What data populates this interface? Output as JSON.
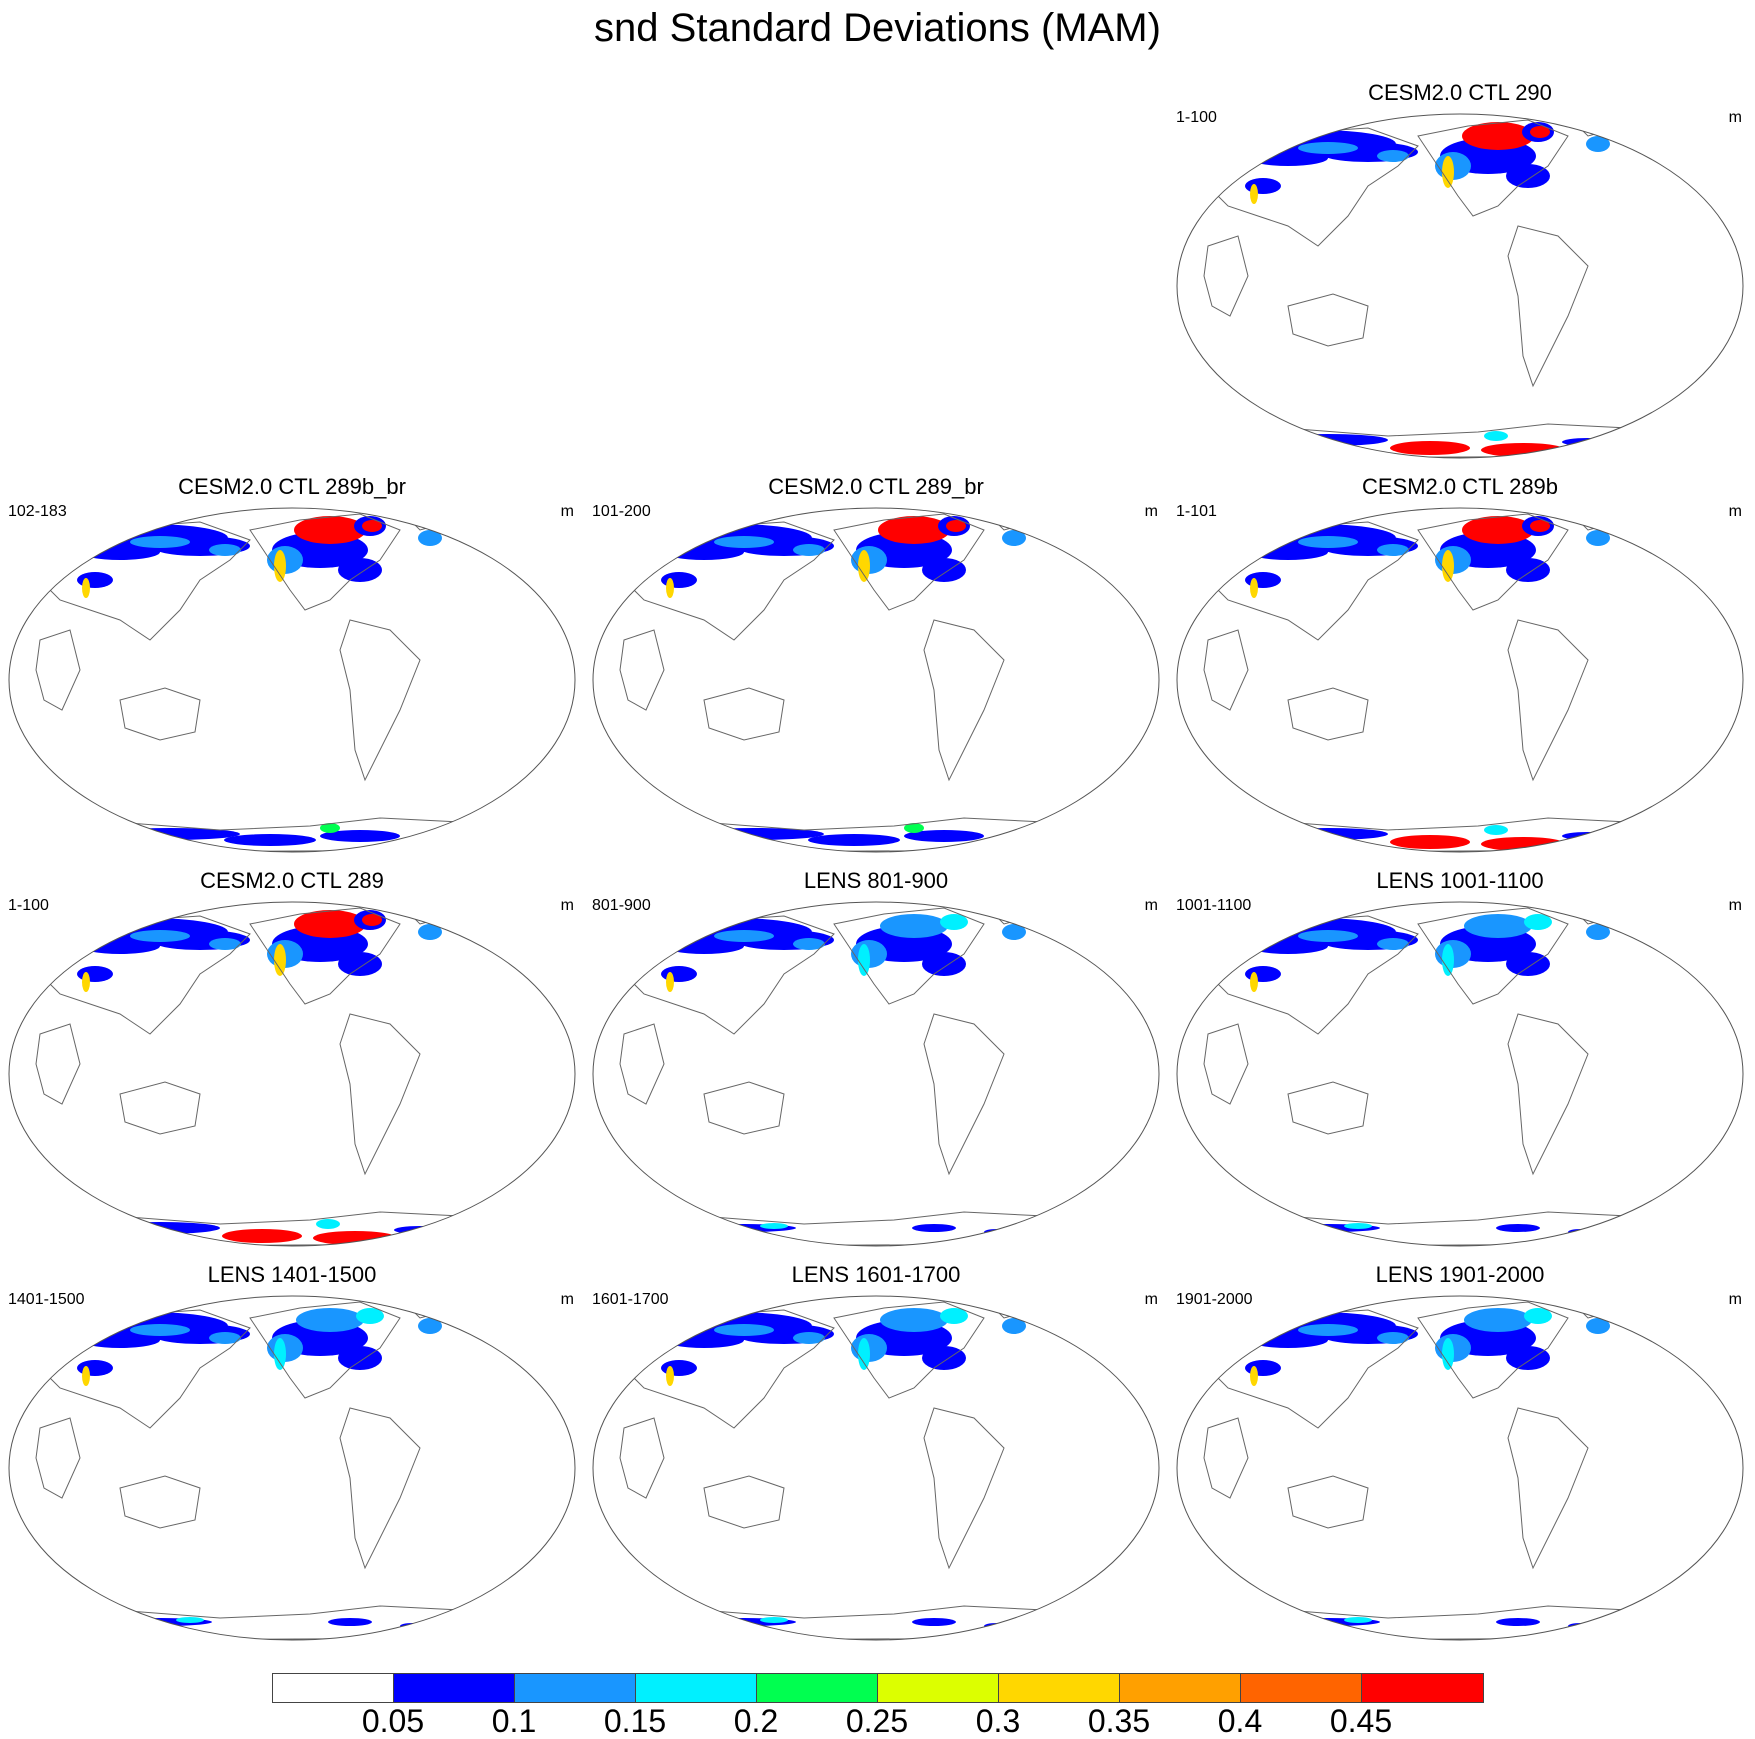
{
  "title": "snd Standard Deviations (MAM)",
  "panels": [
    {
      "title": "CESM2.0 CTL 290",
      "range": "1-100",
      "units": "m",
      "antarctic": "high",
      "arctic": "high",
      "scheme": "ctl"
    },
    {
      "title": "CESM2.0 CTL 289b_br",
      "range": "102-183",
      "units": "m",
      "antarctic": "low",
      "arctic": "high",
      "scheme": "ctl"
    },
    {
      "title": "CESM2.0 CTL 289_br",
      "range": "101-200",
      "units": "m",
      "antarctic": "low",
      "arctic": "high",
      "scheme": "ctl"
    },
    {
      "title": "CESM2.0 CTL 289b",
      "range": "1-101",
      "units": "m",
      "antarctic": "high",
      "arctic": "high",
      "scheme": "ctl"
    },
    {
      "title": "CESM2.0 CTL 289",
      "range": "1-100",
      "units": "m",
      "antarctic": "high",
      "arctic": "high",
      "scheme": "ctl"
    },
    {
      "title": "LENS 801-900",
      "range": "801-900",
      "units": "m",
      "antarctic": "minimal",
      "arctic": "moderate",
      "scheme": "lens"
    },
    {
      "title": "LENS 1001-1100",
      "range": "1001-1100",
      "units": "m",
      "antarctic": "minimal",
      "arctic": "moderate",
      "scheme": "lens"
    },
    {
      "title": "LENS 1401-1500",
      "range": "1401-1500",
      "units": "m",
      "antarctic": "minimal",
      "arctic": "moderate",
      "scheme": "lens"
    },
    {
      "title": "LENS 1601-1700",
      "range": "1601-1700",
      "units": "m",
      "antarctic": "minimal",
      "arctic": "moderate",
      "scheme": "lens"
    },
    {
      "title": "LENS 1901-2000",
      "range": "1901-2000",
      "units": "m",
      "antarctic": "minimal",
      "arctic": "moderate",
      "scheme": "lens"
    }
  ],
  "colorbar": {
    "labels": [
      "0.05",
      "0.1",
      "0.15",
      "0.2",
      "0.25",
      "0.3",
      "0.35",
      "0.4",
      "0.45"
    ],
    "colors": [
      "#ffffff",
      "#0000ff",
      "#1996ff",
      "#00f0ff",
      "#00ff50",
      "#dcff00",
      "#ffd700",
      "#ffa000",
      "#ff6400",
      "#ff0000"
    ]
  }
}
